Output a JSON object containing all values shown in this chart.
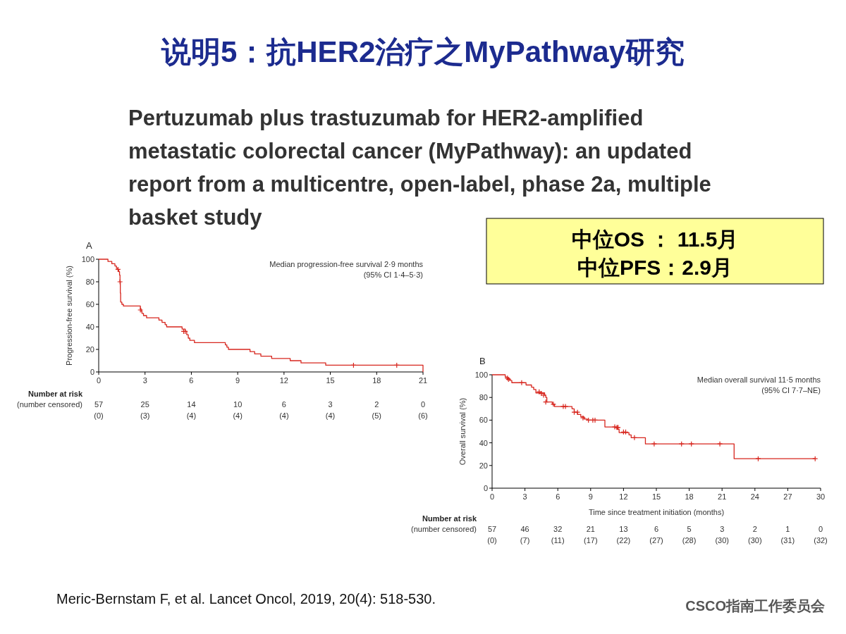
{
  "chart_data": [
    {
      "type": "other",
      "title": "说明5：抗HER2治疗之MyPathway研究",
      "subtitle": "Pertuzumab plus trastuzumab for HER2-amplified metastatic colorectal cancer (MyPathway): an updated report from a multicentre, open-label, phase 2a, multiple basket study",
      "annotations": [
        "中位OS ：  11.5月",
        "中位PFS：2.9月",
        "Meric-Bernstam F, et al.  Lancet Oncol, 2019, 20(4): 518-530.",
        "CSCO指南工作委员会"
      ]
    },
    {
      "type": "step",
      "title": "A",
      "ylabel": "Progression-free survival (%)",
      "xlim": [
        0,
        21
      ],
      "xticks": [
        0,
        3,
        6,
        9,
        12,
        15,
        18,
        21
      ],
      "ylim": [
        0,
        100
      ],
      "yticks": [
        0,
        20,
        40,
        60,
        80,
        100
      ],
      "grid": false,
      "series": [
        {
          "type": "step",
          "color": "#d7261e",
          "x": [
            0,
            0.6,
            0.85,
            1.05,
            1.15,
            1.25,
            1.3,
            1.35,
            1.38,
            1.4,
            1.42,
            1.5,
            1.6,
            2.7,
            2.75,
            2.8,
            2.9,
            3.1,
            3.9,
            4.1,
            4.3,
            4.4,
            5.4,
            5.6,
            5.7,
            5.8,
            5.9,
            6.2,
            8.2,
            8.3,
            8.4,
            9.8,
            10.1,
            10.5,
            11.2,
            12.4,
            13.1,
            14.7,
            21,
            21
          ],
          "values": [
            100,
            98,
            96,
            94,
            92,
            91,
            89,
            86,
            80,
            70,
            62,
            60,
            58.5,
            56,
            54,
            52,
            50,
            48,
            46,
            44,
            42,
            40,
            38,
            36,
            33,
            30,
            28,
            26,
            24,
            22,
            20,
            18,
            16,
            14,
            12,
            10,
            8,
            6,
            6,
            0
          ]
        },
        {
          "type": "scatter",
          "marker": "cross",
          "color": "#d7261e",
          "x": [
            1.25,
            1.38,
            2.7,
            5.5,
            5.6,
            16.5,
            19.3
          ],
          "values": [
            91,
            80,
            55,
            36,
            36,
            6,
            6
          ]
        }
      ],
      "annotations": [
        "Median progression-free survival 2·9 months",
        "(95% CI 1·4–5·3)",
        "Number at risk",
        "(number censored)",
        "57\n(0)",
        "25\n(3)",
        "14\n(4)",
        "10\n(4)",
        "6\n(4)",
        "3\n(4)",
        "2\n(5)",
        "0\n(6)"
      ]
    },
    {
      "type": "step",
      "title": "B",
      "ylabel": "Overall survival (%)",
      "xlabel": "Time since treatment initiation (months)",
      "xlim": [
        0,
        30
      ],
      "xticks": [
        0,
        3,
        6,
        9,
        12,
        15,
        18,
        21,
        24,
        27,
        30
      ],
      "ylim": [
        0,
        100
      ],
      "yticks": [
        0,
        20,
        40,
        60,
        80,
        100
      ],
      "grid": false,
      "series": [
        {
          "type": "step",
          "color": "#d7261e",
          "x": [
            0,
            1.2,
            1.4,
            1.6,
            1.8,
            3.1,
            3.6,
            3.8,
            4.0,
            4.8,
            4.9,
            5.0,
            5.5,
            5.7,
            7.3,
            7.5,
            7.8,
            8.1,
            8.4,
            8.7,
            10.3,
            11.4,
            11.6,
            12.5,
            12.7,
            14,
            22.1,
            29.5
          ],
          "values": [
            100,
            98,
            96.5,
            95,
            93,
            91,
            89,
            87,
            84,
            82,
            80,
            76,
            74,
            72,
            70,
            67,
            65,
            63,
            61,
            60,
            54,
            52,
            49,
            47,
            44.5,
            39,
            26,
            26
          ]
        },
        {
          "type": "scatter",
          "marker": "cross",
          "color": "#d7261e",
          "x": [
            1.4,
            1.5,
            2.7,
            4.3,
            4.5,
            4.7,
            4.9,
            5.6,
            6.5,
            6.7,
            7.5,
            7.8,
            8.3,
            8.8,
            9.2,
            9.4,
            11.2,
            11.4,
            11.5,
            12.0,
            12.2,
            13.0,
            14.8,
            17.3,
            18.2,
            20.8,
            24.3,
            29.5
          ],
          "values": [
            97,
            96,
            93,
            85,
            83.5,
            82,
            76,
            74,
            72,
            72,
            67,
            67,
            62,
            60,
            60,
            60,
            54,
            53.5,
            53.5,
            49.5,
            49.5,
            44.5,
            39,
            39,
            39,
            39,
            26,
            26
          ]
        }
      ],
      "annotations": [
        "Median overall survival 11·5 months",
        "(95% CI 7·7–NE)",
        "Number at risk",
        "(number censored)",
        "57\n(0)",
        "46\n(7)",
        "32\n(11)",
        "21\n(17)",
        "13\n(22)",
        "6\n(27)",
        "5\n(28)",
        "3\n(30)",
        "2\n(30)",
        "1\n(31)",
        "0\n(32)"
      ]
    }
  ]
}
